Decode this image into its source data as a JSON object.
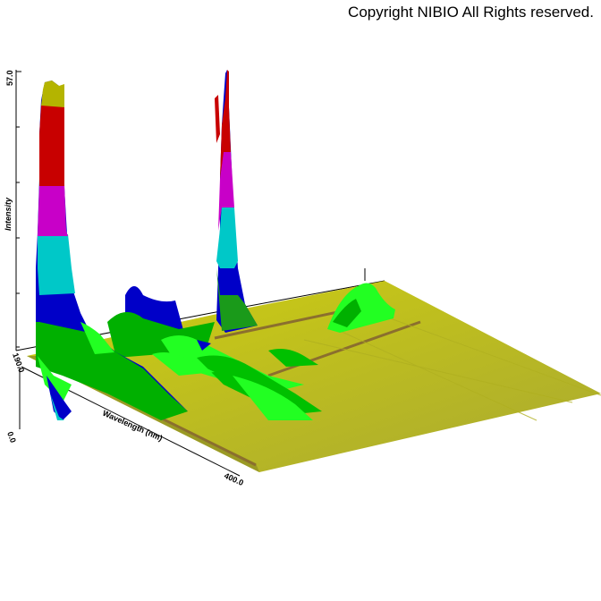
{
  "copyright": "Copyright NIBIO All Rights reserved.",
  "chart_data": {
    "type": "3d-surface",
    "ylabel": "Intensity",
    "xlabel": "Wavelength (nm)",
    "z_tick_labels": [
      "57.0"
    ],
    "x_tick_labels": [
      "190.0",
      "400.0"
    ],
    "depth_tick_labels": [
      "0.0"
    ],
    "colors": {
      "yellow": "#d4d400",
      "red": "#c00000",
      "magenta": "#c000c0",
      "cyan": "#00c0c0",
      "blue": "#0000c0",
      "green": "#00c000",
      "lime": "#00ff00",
      "brown": "#8b6f2e"
    }
  }
}
